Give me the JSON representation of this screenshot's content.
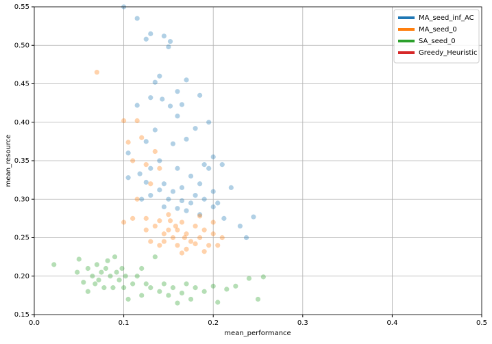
{
  "chart_data": {
    "type": "scatter",
    "xlabel": "mean_performance",
    "ylabel": "mean_resource",
    "xlim": [
      0,
      0.5
    ],
    "ylim": [
      0.15,
      0.55
    ],
    "xticks": [
      {
        "value": 0,
        "label": "0.0"
      },
      0.1,
      0.2,
      0.3,
      0.4,
      0.5
    ],
    "yticks": [
      0.15,
      {
        "value": 0.2,
        "label": "0.20"
      },
      0.25,
      {
        "value": 0.3,
        "label": "0.30"
      },
      0.35,
      {
        "value": 0.4,
        "label": "0.40"
      },
      0.45,
      {
        "value": 0.5,
        "label": "0.50"
      },
      0.55
    ],
    "grid": true,
    "legend": "upper right",
    "series": [
      {
        "name": "MA_seed_inf_AC",
        "color": "#1f77b4",
        "x": [
          0.1,
          0.115,
          0.13,
          0.125,
          0.145,
          0.152,
          0.15,
          0.14,
          0.135,
          0.17,
          0.185,
          0.13,
          0.16,
          0.115,
          0.143,
          0.152,
          0.165,
          0.16,
          0.135,
          0.18,
          0.195,
          0.125,
          0.17,
          0.155,
          0.105,
          0.14,
          0.19,
          0.2,
          0.21,
          0.118,
          0.13,
          0.16,
          0.175,
          0.195,
          0.105,
          0.125,
          0.145,
          0.165,
          0.155,
          0.185,
          0.2,
          0.22,
          0.13,
          0.15,
          0.165,
          0.175,
          0.19,
          0.145,
          0.16,
          0.17,
          0.185,
          0.205,
          0.212,
          0.23,
          0.237,
          0.245,
          0.12,
          0.14,
          0.18,
          0.2
        ],
        "values": [
          0.55,
          0.535,
          0.515,
          0.508,
          0.512,
          0.505,
          0.498,
          0.46,
          0.452,
          0.455,
          0.435,
          0.432,
          0.44,
          0.422,
          0.43,
          0.421,
          0.423,
          0.408,
          0.39,
          0.392,
          0.4,
          0.375,
          0.378,
          0.372,
          0.36,
          0.35,
          0.345,
          0.355,
          0.345,
          0.333,
          0.34,
          0.34,
          0.33,
          0.34,
          0.328,
          0.322,
          0.32,
          0.315,
          0.31,
          0.32,
          0.31,
          0.315,
          0.305,
          0.3,
          0.298,
          0.295,
          0.3,
          0.29,
          0.288,
          0.285,
          0.28,
          0.295,
          0.275,
          0.265,
          0.25,
          0.277,
          0.3,
          0.312,
          0.305,
          0.29
        ]
      },
      {
        "name": "MA_seed_0",
        "color": "#ff7f0e",
        "x": [
          0.07,
          0.1,
          0.105,
          0.115,
          0.12,
          0.135,
          0.11,
          0.125,
          0.14,
          0.13,
          0.115,
          0.1,
          0.11,
          0.125,
          0.135,
          0.14,
          0.15,
          0.16,
          0.155,
          0.145,
          0.165,
          0.17,
          0.175,
          0.18,
          0.185,
          0.19,
          0.195,
          0.2,
          0.205,
          0.21,
          0.13,
          0.14,
          0.15,
          0.16,
          0.165,
          0.17,
          0.18,
          0.19,
          0.125,
          0.152,
          0.168,
          0.185,
          0.145,
          0.158,
          0.2
        ],
        "values": [
          0.465,
          0.402,
          0.374,
          0.402,
          0.38,
          0.362,
          0.35,
          0.345,
          0.34,
          0.32,
          0.3,
          0.27,
          0.275,
          0.275,
          0.265,
          0.272,
          0.28,
          0.26,
          0.25,
          0.255,
          0.27,
          0.255,
          0.245,
          0.265,
          0.25,
          0.26,
          0.24,
          0.255,
          0.24,
          0.25,
          0.245,
          0.24,
          0.26,
          0.24,
          0.23,
          0.235,
          0.242,
          0.232,
          0.26,
          0.272,
          0.25,
          0.278,
          0.245,
          0.265,
          0.27
        ]
      },
      {
        "name": "SA_seed_0",
        "color": "#2ca02c",
        "x": [
          0.022,
          0.05,
          0.048,
          0.055,
          0.06,
          0.06,
          0.065,
          0.07,
          0.072,
          0.075,
          0.08,
          0.082,
          0.085,
          0.088,
          0.09,
          0.092,
          0.095,
          0.098,
          0.1,
          0.102,
          0.105,
          0.11,
          0.115,
          0.12,
          0.12,
          0.125,
          0.13,
          0.135,
          0.14,
          0.145,
          0.15,
          0.155,
          0.16,
          0.165,
          0.17,
          0.175,
          0.18,
          0.19,
          0.2,
          0.205,
          0.215,
          0.225,
          0.24,
          0.25,
          0.256,
          0.078,
          0.068
        ],
        "values": [
          0.215,
          0.222,
          0.205,
          0.192,
          0.21,
          0.18,
          0.2,
          0.215,
          0.195,
          0.205,
          0.21,
          0.22,
          0.2,
          0.185,
          0.225,
          0.205,
          0.195,
          0.21,
          0.185,
          0.2,
          0.17,
          0.19,
          0.2,
          0.175,
          0.21,
          0.19,
          0.185,
          0.225,
          0.18,
          0.19,
          0.175,
          0.185,
          0.165,
          0.178,
          0.19,
          0.17,
          0.185,
          0.18,
          0.187,
          0.166,
          0.183,
          0.187,
          0.197,
          0.17,
          0.199,
          0.185,
          0.19
        ]
      },
      {
        "name": "Greedy_Heuristic",
        "color": "#d62728",
        "x": [],
        "values": []
      }
    ]
  }
}
